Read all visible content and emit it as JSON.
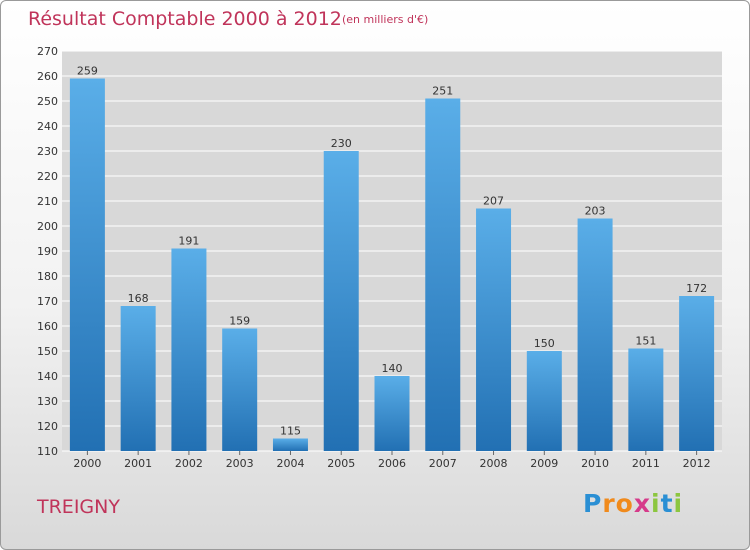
{
  "chart_data": {
    "type": "bar",
    "title": "Résultat Comptable 2000 à 2012",
    "subtitle": "(en milliers d'€)",
    "categories": [
      "2000",
      "2001",
      "2002",
      "2003",
      "2004",
      "2005",
      "2006",
      "2007",
      "2008",
      "2009",
      "2010",
      "2011",
      "2012"
    ],
    "values": [
      259,
      168,
      191,
      159,
      115,
      230,
      140,
      251,
      207,
      150,
      203,
      151,
      172
    ],
    "ylim": [
      110,
      270
    ],
    "ytick_step": 10,
    "xlabel": "",
    "ylabel": "",
    "grid": true
  },
  "location": "TREIGNY",
  "logo": {
    "letters": [
      "P",
      "r",
      "o",
      "x",
      "i",
      "t",
      "i"
    ],
    "colors": [
      "#2a8fd4",
      "#f08a1c",
      "#f08a1c",
      "#d63a8a",
      "#8cc63f",
      "#2a8fd4",
      "#8cc63f"
    ]
  },
  "colors": {
    "bar_top": "#5aaee8",
    "bar_bottom": "#2270b3",
    "grid": "#ffffff",
    "accent": "#c0345a"
  }
}
